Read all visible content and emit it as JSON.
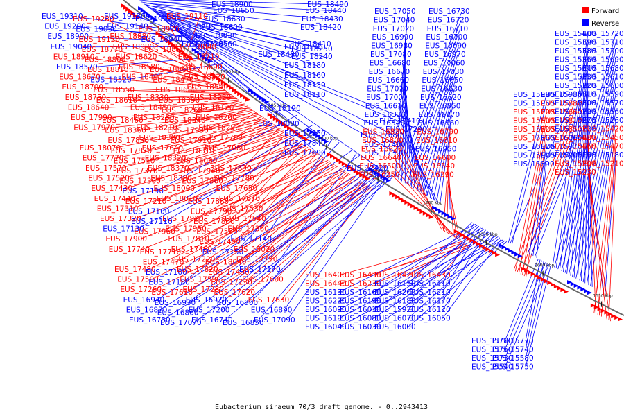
{
  "caption": "Eubacterium siraeum 70/3 draft genome. - 0..2943413",
  "legend": [
    {
      "label": "Forward",
      "color": "#ff0000"
    },
    {
      "label": "Reverse",
      "color": "#0000ff"
    }
  ],
  "colors": {
    "forward": "#ff0000",
    "reverse": "#0000ff",
    "backbone": "#666666",
    "ticks": "#000000"
  },
  "ticks": [
    "1900 kbp",
    "1850 kbp",
    "1800 kbp",
    "1750 kbp",
    "1700 kbp",
    "1650 kbp",
    "1600 kbp",
    "1550 kbp"
  ],
  "labels": [
    {
      "t": "EUS_18900",
      "s": "r"
    },
    {
      "t": "EUS_18490",
      "s": "r"
    },
    {
      "t": "EUS_18650",
      "s": "r"
    },
    {
      "t": "EUS_18440",
      "s": "r"
    },
    {
      "t": "EUS_18630",
      "s": "r"
    },
    {
      "t": "EUS_18430",
      "s": "r"
    },
    {
      "t": "EUS_18600",
      "s": "r"
    },
    {
      "t": "EUS_18420",
      "s": "r"
    },
    {
      "t": "EUS_18830",
      "s": "r"
    },
    {
      "t": "EUS_18560",
      "s": "r"
    },
    {
      "t": "EUS_18410",
      "s": "r"
    },
    {
      "t": "EUS_18720",
      "s": "r"
    },
    {
      "t": "EUS_18510",
      "s": "r"
    },
    {
      "t": "EUS_18250",
      "s": "r"
    },
    {
      "t": "EUS_18480",
      "s": "r"
    },
    {
      "t": "EUS_18240",
      "s": "r"
    },
    {
      "t": "EUS_18180",
      "s": "r"
    },
    {
      "t": "EUS_18160",
      "s": "r"
    },
    {
      "t": "EUS_18130",
      "s": "r"
    },
    {
      "t": "EUS_18110",
      "s": "r"
    },
    {
      "t": "EUS_18190",
      "s": "r"
    },
    {
      "t": "EUS_18080",
      "s": "r"
    },
    {
      "t": "EUS_17850",
      "s": "r"
    },
    {
      "t": "EUS_17840",
      "s": "r"
    },
    {
      "t": "EUS_17690",
      "s": "r"
    },
    {
      "t": "EUS_17680",
      "s": "r"
    },
    {
      "t": "EUS_17410",
      "s": "r"
    },
    {
      "t": "EUS_17290",
      "s": "r"
    },
    {
      "t": "EUS_17400",
      "s": "r"
    },
    {
      "t": "EUS_17390",
      "s": "r"
    },
    {
      "t": "EUS_17420",
      "s": "r"
    },
    {
      "t": "EUS_19310",
      "s": "r"
    },
    {
      "t": "EUS_19280",
      "s": "f"
    },
    {
      "t": "EUS_19180",
      "s": "r"
    },
    {
      "t": "EUS_19260",
      "s": "r"
    },
    {
      "t": "EUS_19110",
      "s": "f"
    },
    {
      "t": "EUS_19200",
      "s": "r"
    },
    {
      "t": "EUS_19030",
      "s": "r"
    },
    {
      "t": "EUS_19140",
      "s": "r"
    },
    {
      "t": "EUS_18970",
      "s": "f"
    },
    {
      "t": "EUS_19070",
      "s": "r"
    },
    {
      "t": "EUS_18990",
      "s": "r"
    },
    {
      "t": "EUS_19120",
      "s": "f"
    },
    {
      "t": "EUS_18880",
      "s": "f"
    },
    {
      "t": "EUS_18940",
      "s": "r"
    },
    {
      "t": "EUS_18840",
      "s": "f"
    },
    {
      "t": "EUS_19040",
      "s": "r"
    },
    {
      "t": "EUS_18770",
      "s": "f"
    },
    {
      "t": "EUS_18980",
      "s": "f"
    },
    {
      "t": "EUS_18850",
      "s": "f"
    },
    {
      "t": "EUS_18710",
      "s": "f"
    },
    {
      "t": "EUS_18910",
      "s": "f"
    },
    {
      "t": "EUS_18800",
      "s": "f"
    },
    {
      "t": "EUS_18620",
      "s": "f"
    },
    {
      "t": "EUS_18860",
      "s": "f"
    },
    {
      "t": "EUS_18690",
      "s": "f"
    },
    {
      "t": "EUS_18570",
      "s": "r"
    },
    {
      "t": "EUS_18810",
      "s": "f"
    },
    {
      "t": "EUS_18580",
      "s": "f"
    },
    {
      "t": "EUS_18470",
      "s": "f"
    },
    {
      "t": "EUS_18820",
      "s": "f"
    },
    {
      "t": "EUS_18670",
      "s": "f"
    },
    {
      "t": "EUS_18520",
      "s": "r"
    },
    {
      "t": "EUS_18400",
      "s": "f"
    },
    {
      "t": "EUS_18680",
      "s": "f"
    },
    {
      "t": "EUS_18540",
      "s": "f"
    },
    {
      "t": "EUS_18700",
      "s": "f"
    },
    {
      "t": "EUS_18550",
      "s": "f"
    },
    {
      "t": "EUS_18330",
      "s": "f"
    },
    {
      "t": "EUS_18390",
      "s": "f"
    },
    {
      "t": "EUS_18220",
      "s": "f"
    },
    {
      "t": "EUS_18750",
      "s": "f"
    },
    {
      "t": "EUS_18610",
      "s": "f"
    },
    {
      "t": "EUS_18450",
      "s": "f"
    },
    {
      "t": "EUS_18260",
      "s": "f"
    },
    {
      "t": "EUS_18120",
      "s": "f"
    },
    {
      "t": "EUS_18640",
      "s": "f"
    },
    {
      "t": "EUS_18460",
      "s": "f"
    },
    {
      "t": "EUS_18280",
      "s": "f"
    },
    {
      "t": "EUS_18340",
      "s": "f"
    },
    {
      "t": "EUS_18200",
      "s": "f"
    },
    {
      "t": "EUS_17990",
      "s": "f"
    },
    {
      "t": "EUS_18360",
      "s": "f"
    },
    {
      "t": "EUS_18210",
      "s": "f"
    },
    {
      "t": "EUS_17930",
      "s": "f"
    },
    {
      "t": "EUS_18290",
      "s": "f"
    },
    {
      "t": "EUS_17970",
      "s": "f"
    },
    {
      "t": "EUS_17830",
      "s": "f"
    },
    {
      "t": "EUS_18300",
      "s": "f"
    },
    {
      "t": "EUS_17910",
      "s": "f"
    },
    {
      "t": "EUS_17760",
      "s": "f"
    },
    {
      "t": "EUS_18070",
      "s": "f"
    },
    {
      "t": "EUS_17870",
      "s": "f"
    },
    {
      "t": "EUS_17640",
      "s": "f"
    },
    {
      "t": "EUS_18310",
      "s": "f"
    },
    {
      "t": "EUS_17980",
      "s": "f"
    },
    {
      "t": "EUS_17770",
      "s": "f"
    },
    {
      "t": "EUS_17510",
      "s": "f"
    },
    {
      "t": "EUS_18320",
      "s": "f"
    },
    {
      "t": "EUS_18060",
      "s": "f"
    },
    {
      "t": "EUS_17890",
      "s": "f"
    },
    {
      "t": "EUS_17570",
      "s": "f"
    },
    {
      "t": "EUS_17370",
      "s": "f"
    },
    {
      "t": "EUS_18370",
      "s": "f"
    },
    {
      "t": "EUS_17940",
      "s": "f"
    },
    {
      "t": "EUS_17780",
      "s": "f"
    },
    {
      "t": "EUS_17520",
      "s": "f"
    },
    {
      "t": "EUS_17300",
      "s": "f"
    },
    {
      "t": "EUS_18380",
      "s": "f"
    },
    {
      "t": "EUS_17860",
      "s": "f"
    },
    {
      "t": "EUS_17650",
      "s": "f"
    },
    {
      "t": "EUS_17430",
      "s": "f"
    },
    {
      "t": "EUS_17190",
      "s": "r"
    },
    {
      "t": "EUS_18000",
      "s": "f"
    },
    {
      "t": "EUS_17880",
      "s": "f"
    },
    {
      "t": "EUS_17670",
      "s": "f"
    },
    {
      "t": "EUS_17440",
      "s": "f"
    },
    {
      "t": "EUS_17210",
      "s": "f"
    },
    {
      "t": "EUS_18010",
      "s": "f"
    },
    {
      "t": "EUS_17790",
      "s": "f"
    },
    {
      "t": "EUS_17530",
      "s": "f"
    },
    {
      "t": "EUS_17310",
      "s": "f"
    },
    {
      "t": "EUS_17100",
      "s": "r"
    },
    {
      "t": "EUS_17920",
      "s": "f"
    },
    {
      "t": "EUS_17800",
      "s": "f"
    },
    {
      "t": "EUS_17540",
      "s": "f"
    },
    {
      "t": "EUS_17320",
      "s": "f"
    },
    {
      "t": "EUS_17110",
      "s": "r"
    },
    {
      "t": "EUS_17950",
      "s": "f"
    },
    {
      "t": "EUS_17560",
      "s": "f"
    },
    {
      "t": "EUS_17360",
      "s": "f"
    },
    {
      "t": "EUS_17130",
      "s": "r"
    },
    {
      "t": "EUS_17960",
      "s": "f"
    },
    {
      "t": "EUS_17810",
      "s": "f"
    },
    {
      "t": "EUS_17450",
      "s": "f"
    },
    {
      "t": "EUS_17140",
      "s": "r"
    },
    {
      "t": "EUS_17900",
      "s": "f"
    },
    {
      "t": "EUS_17710",
      "s": "f"
    },
    {
      "t": "EUS_17460",
      "s": "f"
    },
    {
      "t": "EUS_17150",
      "s": "r"
    },
    {
      "t": "EUS_18020",
      "s": "f"
    },
    {
      "t": "EUS_17740",
      "s": "f"
    },
    {
      "t": "EUS_17470",
      "s": "f"
    },
    {
      "t": "EUS_17220",
      "s": "f"
    },
    {
      "t": "EUS_18040",
      "s": "f"
    },
    {
      "t": "EUS_17750",
      "s": "f"
    },
    {
      "t": "EUS_17480",
      "s": "f"
    },
    {
      "t": "EUS_17160",
      "s": "r"
    },
    {
      "t": "EUS_17820",
      "s": "f"
    },
    {
      "t": "EUS_17490",
      "s": "f"
    },
    {
      "t": "EUS_17170",
      "s": "r"
    },
    {
      "t": "EUS_17500",
      "s": "f"
    },
    {
      "t": "EUS_17180",
      "s": "r"
    },
    {
      "t": "EUS_17590",
      "s": "f"
    },
    {
      "t": "EUS_17230",
      "s": "f"
    },
    {
      "t": "EUS_17600",
      "s": "f"
    },
    {
      "t": "EUS_17260",
      "s": "f"
    },
    {
      "t": "EUS_17610",
      "s": "f"
    },
    {
      "t": "EUS_17280",
      "s": "f"
    },
    {
      "t": "EUS_17620",
      "s": "f"
    },
    {
      "t": "EUS_17630",
      "s": "f"
    },
    {
      "t": "EUS_16940",
      "s": "r"
    },
    {
      "t": "EUS_16930",
      "s": "r"
    },
    {
      "t": "EUS_16920",
      "s": "r"
    },
    {
      "t": "EUS_16900",
      "s": "r"
    },
    {
      "t": "EUS_16890",
      "s": "r"
    },
    {
      "t": "EUS_16870",
      "s": "r"
    },
    {
      "t": "EUS_16860",
      "s": "r"
    },
    {
      "t": "EUS_17200",
      "s": "r"
    },
    {
      "t": "EUS_16850",
      "s": "r"
    },
    {
      "t": "EUS_17090",
      "s": "r"
    },
    {
      "t": "EUS_16750",
      "s": "r"
    },
    {
      "t": "EUS_17070",
      "s": "r"
    },
    {
      "t": "EUS_16740",
      "s": "r"
    },
    {
      "t": "EUS_17050",
      "s": "r"
    },
    {
      "t": "EUS_16730",
      "s": "r"
    },
    {
      "t": "EUS_17040",
      "s": "r"
    },
    {
      "t": "EUS_16720",
      "s": "r"
    },
    {
      "t": "EUS_17020",
      "s": "r"
    },
    {
      "t": "EUS_16710",
      "s": "r"
    },
    {
      "t": "EUS_16990",
      "s": "r"
    },
    {
      "t": "EUS_16700",
      "s": "r"
    },
    {
      "t": "EUS_16980",
      "s": "r"
    },
    {
      "t": "EUS_16690",
      "s": "r"
    },
    {
      "t": "EUS_17080",
      "s": "r"
    },
    {
      "t": "EUS_16970",
      "s": "r"
    },
    {
      "t": "EUS_16680",
      "s": "r"
    },
    {
      "t": "EUS_17060",
      "s": "r"
    },
    {
      "t": "EUS_16670",
      "s": "r"
    },
    {
      "t": "EUS_17030",
      "s": "r"
    },
    {
      "t": "EUS_16660",
      "s": "r"
    },
    {
      "t": "EUS_16650",
      "s": "r"
    },
    {
      "t": "EUS_17010",
      "s": "r"
    },
    {
      "t": "EUS_16630",
      "s": "r"
    },
    {
      "t": "EUS_17000",
      "s": "r"
    },
    {
      "t": "EUS_16620",
      "s": "r"
    },
    {
      "t": "EUS_16610",
      "s": "r"
    },
    {
      "t": "EUS_16550",
      "s": "r"
    },
    {
      "t": "EUS_16330",
      "s": "r"
    },
    {
      "t": "EUS_16270",
      "s": "r"
    },
    {
      "t": "EUS_16340",
      "s": "r"
    },
    {
      "t": "EUS_16960",
      "s": "r"
    },
    {
      "t": "EUS_16830",
      "s": "f"
    },
    {
      "t": "EUS_16790",
      "s": "f"
    },
    {
      "t": "EUS_16800",
      "s": "f"
    },
    {
      "t": "EUS_16810",
      "s": "f"
    },
    {
      "t": "EUS_16820",
      "s": "f"
    },
    {
      "t": "EUS_16950",
      "s": "r"
    },
    {
      "t": "EUS_16640",
      "s": "f"
    },
    {
      "t": "EUS_16600",
      "s": "f"
    },
    {
      "t": "EUS_16500",
      "s": "f"
    },
    {
      "t": "EUS_16540",
      "s": "f"
    },
    {
      "t": "EUS_16350",
      "s": "f"
    },
    {
      "t": "EUS_16390",
      "s": "f"
    },
    {
      "t": "EUS_16400",
      "s": "f"
    },
    {
      "t": "EUS_16410",
      "s": "f"
    },
    {
      "t": "EUS_16420",
      "s": "f"
    },
    {
      "t": "EUS_16430",
      "s": "f"
    },
    {
      "t": "EUS_16440",
      "s": "f"
    },
    {
      "t": "EUS_16230",
      "s": "f"
    },
    {
      "t": "EUS_16150",
      "s": "r"
    },
    {
      "t": "EUS_16110",
      "s": "r"
    },
    {
      "t": "EUS_16130",
      "s": "r"
    },
    {
      "t": "EUS_16160",
      "s": "r"
    },
    {
      "t": "EUS_16200",
      "s": "r"
    },
    {
      "t": "EUS_16210",
      "s": "r"
    },
    {
      "t": "EUS_16220",
      "s": "r"
    },
    {
      "t": "EUS_16190",
      "s": "r"
    },
    {
      "t": "EUS_16180",
      "s": "r"
    },
    {
      "t": "EUS_16170",
      "s": "r"
    },
    {
      "t": "EUS_16090",
      "s": "r"
    },
    {
      "t": "EUS_16010",
      "s": "r"
    },
    {
      "t": "EUS_15920",
      "s": "r"
    },
    {
      "t": "EUS_16120",
      "s": "r"
    },
    {
      "t": "EUS_16100",
      "s": "r"
    },
    {
      "t": "EUS_16080",
      "s": "r"
    },
    {
      "t": "EUS_16070",
      "s": "r"
    },
    {
      "t": "EUS_16050",
      "s": "r"
    },
    {
      "t": "EUS_16040",
      "s": "r"
    },
    {
      "t": "EUS_16030",
      "s": "r"
    },
    {
      "t": "EUS_16000",
      "s": "r"
    },
    {
      "t": "EUS_15990",
      "s": "r"
    },
    {
      "t": "EUS_15980",
      "s": "r"
    },
    {
      "t": "EUS_15960",
      "s": "r"
    },
    {
      "t": "EUS_15880",
      "s": "f"
    },
    {
      "t": "EUS_15790",
      "s": "f"
    },
    {
      "t": "EUS_15660",
      "s": "f"
    },
    {
      "t": "EUS_15800",
      "s": "f"
    },
    {
      "t": "EUS_15810",
      "s": "f"
    },
    {
      "t": "EUS_15820",
      "s": "f"
    },
    {
      "t": "EUS_15850",
      "s": "f"
    },
    {
      "t": "EUS_15860",
      "s": "f"
    },
    {
      "t": "EUS_16060",
      "s": "r"
    },
    {
      "t": "EUS_16020",
      "s": "r"
    },
    {
      "t": "EUS_15970",
      "s": "r"
    },
    {
      "t": "EUS_15940",
      "s": "r"
    },
    {
      "t": "EUS_15900",
      "s": "r"
    },
    {
      "t": "EUS_15890",
      "s": "r"
    },
    {
      "t": "EUS_15780",
      "s": "r"
    },
    {
      "t": "EUS_15770",
      "s": "r"
    },
    {
      "t": "EUS_15760",
      "s": "r"
    },
    {
      "t": "EUS_15740",
      "s": "r"
    },
    {
      "t": "EUS_15730",
      "s": "r"
    },
    {
      "t": "EUS_15580",
      "s": "r"
    },
    {
      "t": "EUS_15540",
      "s": "r"
    },
    {
      "t": "EUS_15750",
      "s": "r"
    },
    {
      "t": "EUS_15400",
      "s": "r"
    },
    {
      "t": "EUS_15720",
      "s": "r"
    },
    {
      "t": "EUS_15390",
      "s": "r"
    },
    {
      "t": "EUS_15710",
      "s": "r"
    },
    {
      "t": "EUS_15380",
      "s": "r"
    },
    {
      "t": "EUS_15700",
      "s": "r"
    },
    {
      "t": "EUS_15360",
      "s": "r"
    },
    {
      "t": "EUS_15690",
      "s": "r"
    },
    {
      "t": "EUS_15340",
      "s": "r"
    },
    {
      "t": "EUS_15680",
      "s": "r"
    },
    {
      "t": "EUS_15330",
      "s": "r"
    },
    {
      "t": "EUS_15610",
      "s": "r"
    },
    {
      "t": "EUS_15320",
      "s": "r"
    },
    {
      "t": "EUS_15600",
      "s": "r"
    },
    {
      "t": "EUS_15310",
      "s": "r"
    },
    {
      "t": "EUS_15590",
      "s": "r"
    },
    {
      "t": "EUS_15300",
      "s": "r"
    },
    {
      "t": "EUS_15570",
      "s": "r"
    },
    {
      "t": "EUS_15290",
      "s": "r"
    },
    {
      "t": "EUS_15560",
      "s": "r"
    },
    {
      "t": "EUS_15270",
      "s": "r"
    },
    {
      "t": "EUS_15260",
      "s": "r"
    },
    {
      "t": "EUS_15220",
      "s": "r"
    },
    {
      "t": "EUS_15420",
      "s": "f"
    },
    {
      "t": "EUS_15430",
      "s": "f"
    },
    {
      "t": "EUS_15450",
      "s": "f"
    },
    {
      "t": "EUS_15460",
      "s": "f"
    },
    {
      "t": "EUS_15470",
      "s": "f"
    },
    {
      "t": "EUS_15160",
      "s": "r"
    },
    {
      "t": "EUS_15180",
      "s": "r"
    },
    {
      "t": "EUS_15200",
      "s": "f"
    },
    {
      "t": "EUS_15210",
      "s": "f"
    },
    {
      "t": "EUS_15230",
      "s": "f"
    }
  ]
}
